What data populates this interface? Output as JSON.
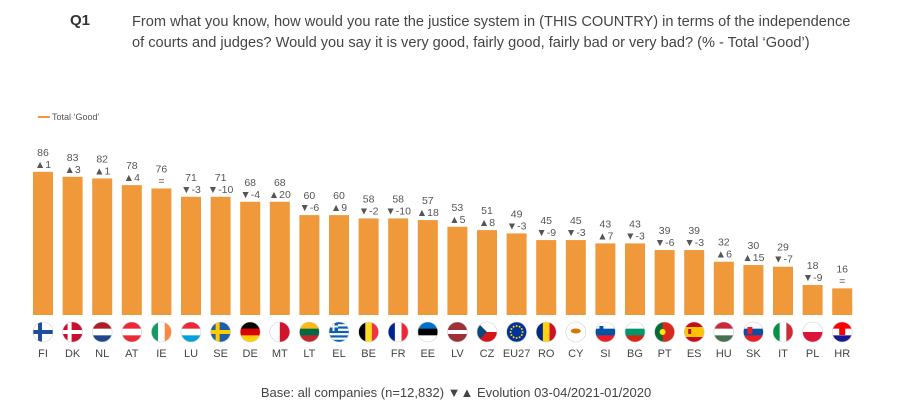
{
  "question": {
    "label": "Q1",
    "text": "From what you know, how would you rate the justice system in (THIS COUNTRY) in terms of the independence of courts and judges? Would you say it is very good, fairly good, fairly bad or very bad? (% - Total ‘Good’)"
  },
  "footer": "Base: all companies (n=12,832) ▼▲ Evolution 03-04/2021-01/2020",
  "colors": {
    "bar": "#F0993A",
    "text": "#555555"
  },
  "chart_data": {
    "type": "bar",
    "title": "",
    "xlabel": "",
    "ylabel": "",
    "ylim": [
      0,
      100
    ],
    "grid": false,
    "legend_position": "top-left",
    "categories": [
      "FI",
      "DK",
      "NL",
      "AT",
      "IE",
      "LU",
      "SE",
      "DE",
      "MT",
      "LT",
      "EL",
      "BE",
      "FR",
      "EE",
      "LV",
      "CZ",
      "EU27",
      "RO",
      "CY",
      "SI",
      "BG",
      "PT",
      "ES",
      "HU",
      "SK",
      "IT",
      "PL",
      "HR"
    ],
    "series": [
      {
        "name": "Total ‘Good’",
        "values": [
          86,
          83,
          82,
          78,
          76,
          71,
          71,
          68,
          68,
          60,
          60,
          58,
          58,
          57,
          53,
          51,
          49,
          45,
          45,
          43,
          43,
          39,
          39,
          32,
          30,
          29,
          18,
          16
        ],
        "evolution": [
          "▲1",
          "▲3",
          "▲1",
          "▲4",
          "=",
          "▼-3",
          "▼-10",
          "▼-4",
          "▲20",
          "▼-6",
          "▲9",
          "▼-2",
          "▼-10",
          "▲18",
          "▲5",
          "▲8",
          "▼-3",
          "▼-9",
          "▼-3",
          "▲7",
          "▼-3",
          "▼-6",
          "▼-3",
          "▲6",
          "▲15",
          "▼-7",
          "▼-9",
          "="
        ]
      }
    ],
    "flags": [
      "FI",
      "DK",
      "NL",
      "AT",
      "IE",
      "LU",
      "SE",
      "DE",
      "MT",
      "LT",
      "EL",
      "BE",
      "FR",
      "EE",
      "LV",
      "CZ",
      "EU27",
      "RO",
      "CY",
      "SI",
      "BG",
      "PT",
      "ES",
      "HU",
      "SK",
      "IT",
      "PL",
      "HR"
    ]
  }
}
